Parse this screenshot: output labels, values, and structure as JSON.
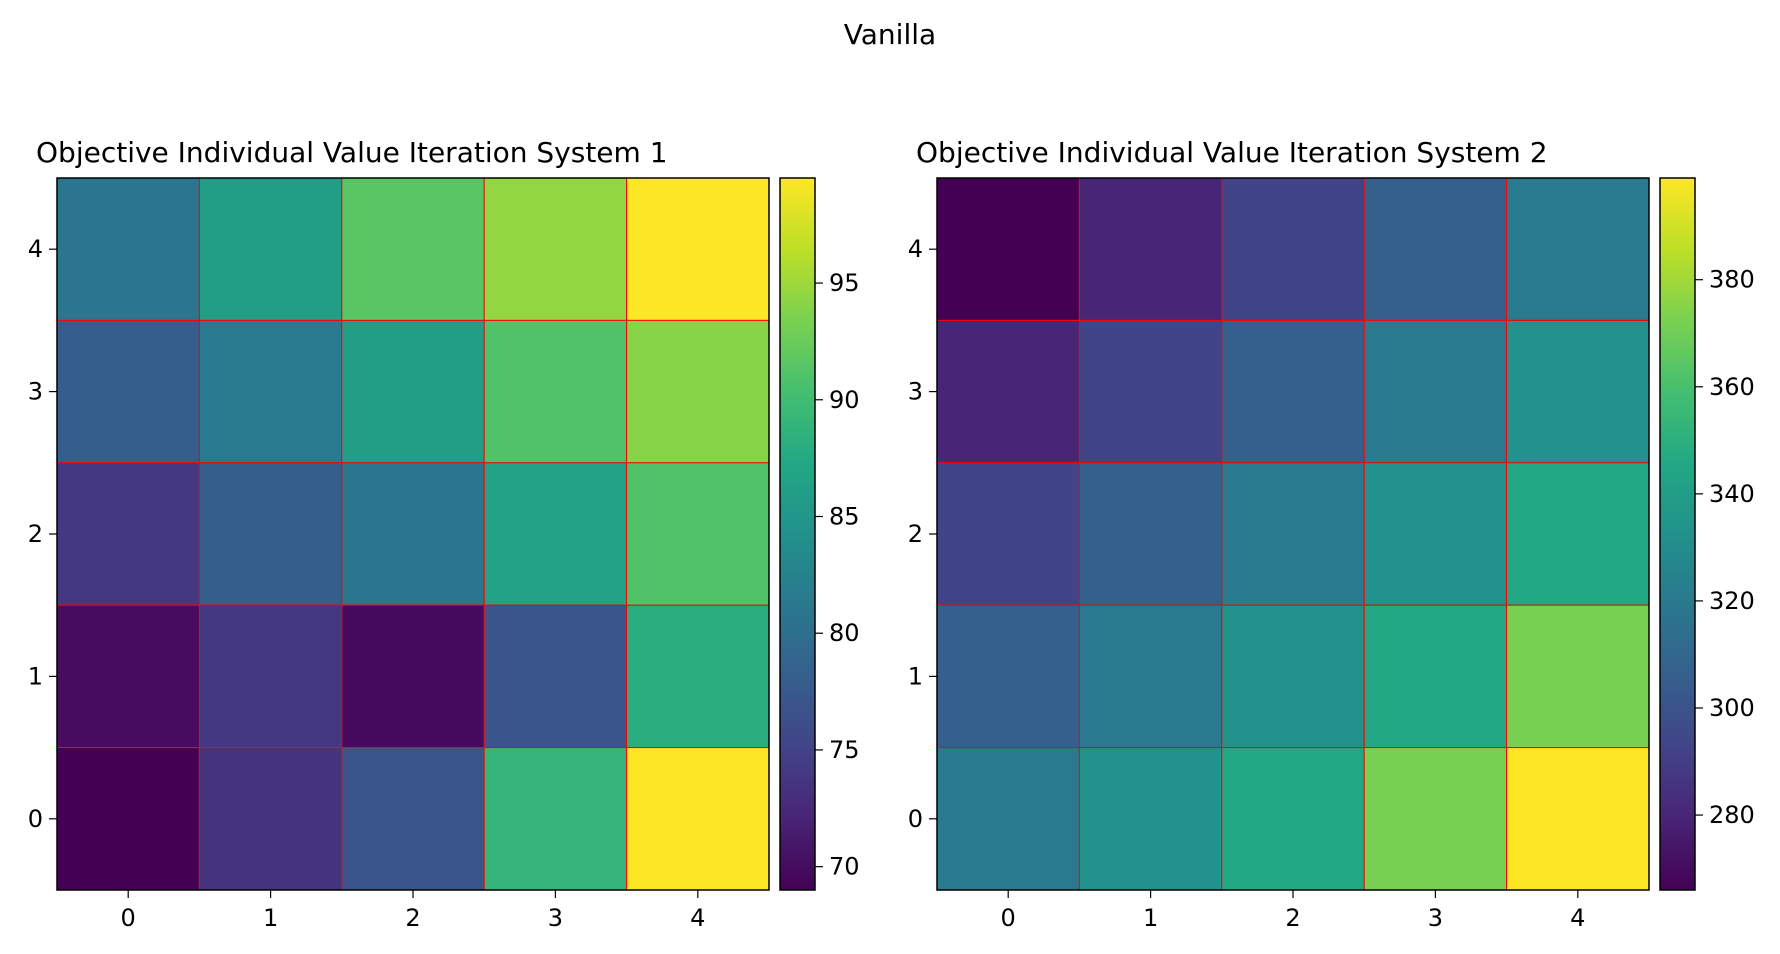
{
  "figure": {
    "suptitle": "Vanilla"
  },
  "chart_data": [
    {
      "type": "heatmap",
      "title": "Objective Individual Value Iteration System 1",
      "xlabel": "",
      "ylabel": "",
      "x_ticks": [
        "0",
        "1",
        "2",
        "3",
        "4"
      ],
      "y_ticks": [
        "0",
        "1",
        "2",
        "3",
        "4"
      ],
      "colormap": "viridis",
      "cell_border_color": "#ff0000",
      "vmin": 69,
      "vmax": 99.5,
      "colorbar_ticks": [
        "70",
        "75",
        "80",
        "85",
        "90",
        "95"
      ],
      "colorbar_tick_values": [
        70,
        75,
        80,
        85,
        90,
        95
      ],
      "rows": [
        {
          "y": 4,
          "values": [
            81.0,
            86.0,
            91.5,
            94.5,
            99.5
          ]
        },
        {
          "y": 3,
          "values": [
            78.0,
            81.5,
            86.0,
            91.0,
            94.0
          ]
        },
        {
          "y": 2,
          "values": [
            74.0,
            78.0,
            81.0,
            86.5,
            91.0
          ]
        },
        {
          "y": 1,
          "values": [
            70.0,
            74.0,
            69.8,
            77.0,
            88.0
          ]
        },
        {
          "y": 0,
          "values": [
            69.0,
            73.5,
            77.0,
            89.0,
            99.5
          ]
        }
      ]
    },
    {
      "type": "heatmap",
      "title": "Objective Individual Value Iteration System 2",
      "xlabel": "",
      "ylabel": "",
      "x_ticks": [
        "0",
        "1",
        "2",
        "3",
        "4"
      ],
      "y_ticks": [
        "0",
        "1",
        "2",
        "3",
        "4"
      ],
      "colormap": "viridis",
      "cell_border_color": "#ff0000",
      "vmin": 266,
      "vmax": 399,
      "colorbar_ticks": [
        "280",
        "300",
        "320",
        "340",
        "360",
        "380"
      ],
      "colorbar_tick_values": [
        280,
        300,
        320,
        340,
        360,
        380
      ],
      "rows": [
        {
          "y": 4,
          "values": [
            266,
            280,
            293,
            306,
            320
          ]
        },
        {
          "y": 3,
          "values": [
            280,
            293,
            306,
            320,
            333
          ]
        },
        {
          "y": 2,
          "values": [
            293,
            306,
            320,
            333,
            346
          ]
        },
        {
          "y": 1,
          "values": [
            306,
            320,
            333,
            346,
            372
          ]
        },
        {
          "y": 0,
          "values": [
            320,
            333,
            346,
            372,
            399
          ]
        }
      ]
    }
  ]
}
